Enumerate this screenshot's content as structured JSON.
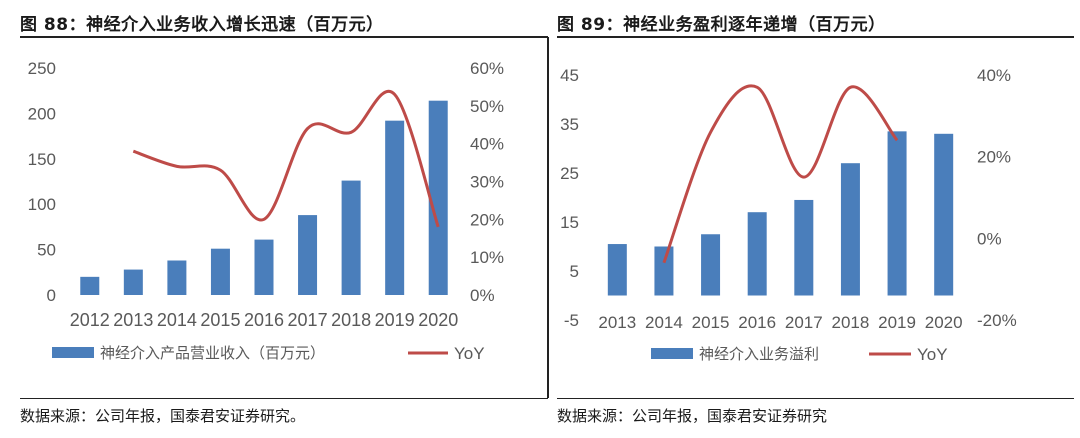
{
  "charts": [
    {
      "title": "图 88：神经介入业务收入增长迅速（百万元）",
      "source": "数据来源：公司年报，国泰君安证券研究。"
    },
    {
      "title": "图 89：神经业务盈利逐年递增（百万元）",
      "source": "数据来源：公司年报，国泰君安证券研究"
    }
  ],
  "colors": {
    "bar": "#4a7ebb",
    "line": "#be4b48"
  },
  "chart_data": [
    {
      "type": "bar",
      "categories": [
        "2012",
        "2013",
        "2014",
        "2015",
        "2016",
        "2017",
        "2018",
        "2019",
        "2020"
      ],
      "series": [
        {
          "name": "神经介入产品营业收入（百万元）",
          "type": "bar",
          "axis": "left",
          "values": [
            20,
            28,
            38,
            51,
            61,
            88,
            126,
            192,
            214
          ]
        },
        {
          "name": "YoY",
          "type": "line",
          "axis": "right",
          "values": [
            null,
            38,
            34,
            33,
            20,
            44,
            43,
            53,
            18
          ]
        }
      ],
      "y_left": {
        "min": 0,
        "max": 250,
        "ticks": [
          "0",
          "50",
          "100",
          "150",
          "200",
          "250"
        ]
      },
      "y_right": {
        "min": 0,
        "max": 0.6,
        "ticks": [
          "0%",
          "10%",
          "20%",
          "30%",
          "40%",
          "50%",
          "60%"
        ]
      },
      "legend": "bottom"
    },
    {
      "type": "bar",
      "categories": [
        "2013",
        "2014",
        "2015",
        "2016",
        "2017",
        "2018",
        "2019",
        "2020"
      ],
      "series": [
        {
          "name": "神经介入业务溢利",
          "type": "bar",
          "axis": "left",
          "values": [
            10.5,
            10,
            12.5,
            17,
            19.5,
            27,
            33.5,
            33
          ]
        },
        {
          "name": "YoY",
          "type": "line",
          "axis": "right",
          "values": [
            null,
            -6,
            26,
            37,
            15,
            37,
            24,
            null
          ]
        }
      ],
      "y_left": {
        "min": -5,
        "max": 45,
        "ticks": [
          "-5",
          "5",
          "15",
          "25",
          "35",
          "45"
        ]
      },
      "y_right": {
        "min": -0.2,
        "max": 0.4,
        "ticks": [
          "-20%",
          "0%",
          "20%",
          "40%"
        ]
      },
      "legend": "bottom"
    }
  ]
}
